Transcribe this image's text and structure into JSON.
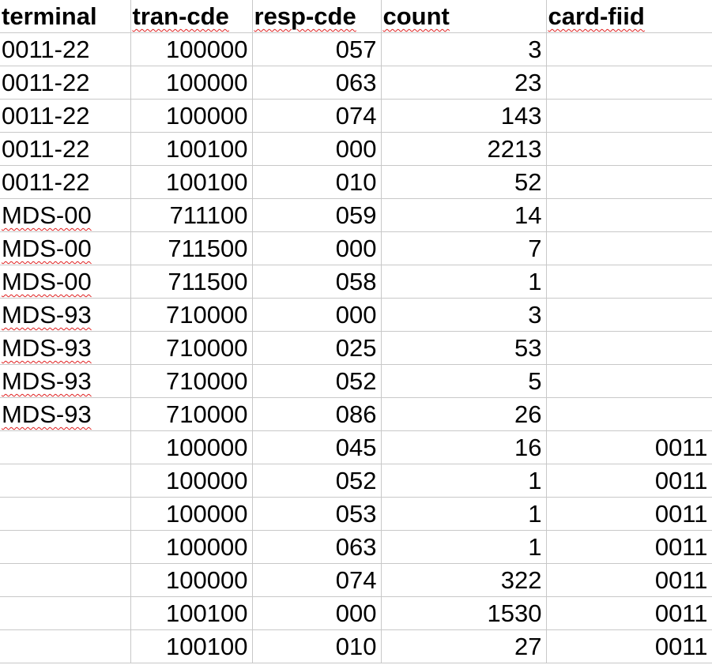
{
  "spreadsheet": {
    "columns": [
      {
        "key": "terminal",
        "label": "terminal",
        "align": "left",
        "spellcheck": false
      },
      {
        "key": "tran_cde",
        "label": "tran-cde",
        "align": "right",
        "spellcheck": true
      },
      {
        "key": "resp_cde",
        "label": "resp-cde",
        "align": "right",
        "spellcheck": true
      },
      {
        "key": "count",
        "label": "count",
        "align": "right",
        "spellcheck": true
      },
      {
        "key": "card_fiid",
        "label": "card-fiid",
        "align": "right",
        "spellcheck": true
      }
    ],
    "rows": [
      {
        "terminal": "0011-22",
        "tran_cde": "100000",
        "resp_cde": "057",
        "count": "3",
        "card_fiid": ""
      },
      {
        "terminal": "0011-22",
        "tran_cde": "100000",
        "resp_cde": "063",
        "count": "23",
        "card_fiid": ""
      },
      {
        "terminal": "0011-22",
        "tran_cde": "100000",
        "resp_cde": "074",
        "count": "143",
        "card_fiid": ""
      },
      {
        "terminal": "0011-22",
        "tran_cde": "100100",
        "resp_cde": "000",
        "count": "2213",
        "card_fiid": ""
      },
      {
        "terminal": "0011-22",
        "tran_cde": "100100",
        "resp_cde": "010",
        "count": "52",
        "card_fiid": ""
      },
      {
        "terminal": "MDS-00",
        "tran_cde": "711100",
        "resp_cde": "059",
        "count": "14",
        "card_fiid": ""
      },
      {
        "terminal": "MDS-00",
        "tran_cde": "711500",
        "resp_cde": "000",
        "count": "7",
        "card_fiid": ""
      },
      {
        "terminal": "MDS-00",
        "tran_cde": "711500",
        "resp_cde": "058",
        "count": "1",
        "card_fiid": ""
      },
      {
        "terminal": "MDS-93",
        "tran_cde": "710000",
        "resp_cde": "000",
        "count": "3",
        "card_fiid": ""
      },
      {
        "terminal": "MDS-93",
        "tran_cde": "710000",
        "resp_cde": "025",
        "count": "53",
        "card_fiid": ""
      },
      {
        "terminal": "MDS-93",
        "tran_cde": "710000",
        "resp_cde": "052",
        "count": "5",
        "card_fiid": ""
      },
      {
        "terminal": "MDS-93",
        "tran_cde": "710000",
        "resp_cde": "086",
        "count": "26",
        "card_fiid": ""
      },
      {
        "terminal": "",
        "tran_cde": "100000",
        "resp_cde": "045",
        "count": "16",
        "card_fiid": "0011"
      },
      {
        "terminal": "",
        "tran_cde": "100000",
        "resp_cde": "052",
        "count": "1",
        "card_fiid": "0011"
      },
      {
        "terminal": "",
        "tran_cde": "100000",
        "resp_cde": "053",
        "count": "1",
        "card_fiid": "0011"
      },
      {
        "terminal": "",
        "tran_cde": "100000",
        "resp_cde": "063",
        "count": "1",
        "card_fiid": "0011"
      },
      {
        "terminal": "",
        "tran_cde": "100000",
        "resp_cde": "074",
        "count": "322",
        "card_fiid": "0011"
      },
      {
        "terminal": "",
        "tran_cde": "100100",
        "resp_cde": "000",
        "count": "1530",
        "card_fiid": "0011"
      },
      {
        "terminal": "",
        "tran_cde": "100100",
        "resp_cde": "010",
        "count": "27",
        "card_fiid": "0011"
      }
    ]
  },
  "colors": {
    "gridline": "#c8c8c8",
    "spellcheck_underline": "#e02020",
    "text": "#000000",
    "background": "#ffffff"
  }
}
